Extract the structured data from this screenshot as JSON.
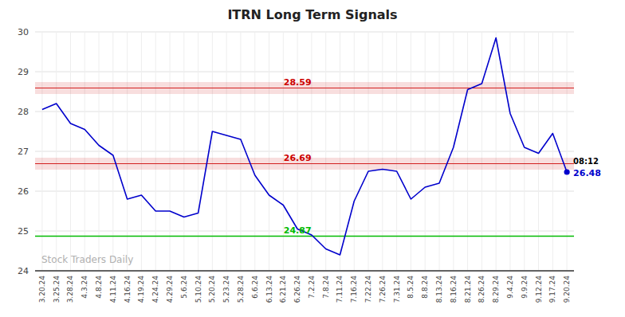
{
  "chart_data": {
    "type": "line",
    "title": "ITRN Long Term Signals",
    "categories": [
      "3.20.24",
      "3.25.24",
      "3.28.24",
      "4.3.24",
      "4.8.24",
      "4.11.24",
      "4.16.24",
      "4.19.24",
      "4.24.24",
      "4.29.24",
      "5.6.24",
      "5.10.24",
      "5.20.24",
      "5.23.24",
      "5.28.24",
      "6.6.24",
      "6.13.24",
      "6.21.24",
      "6.26.24",
      "7.2.24",
      "7.8.24",
      "7.11.24",
      "7.16.24",
      "7.22.24",
      "7.26.24",
      "7.31.24",
      "8.5.24",
      "8.8.24",
      "8.13.24",
      "8.16.24",
      "8.21.24",
      "8.26.24",
      "8.29.24",
      "9.4.24",
      "9.9.24",
      "9.12.24",
      "9.17.24",
      "9.20.24"
    ],
    "values": [
      28.05,
      28.2,
      27.7,
      27.55,
      27.15,
      26.9,
      25.8,
      25.9,
      25.5,
      25.5,
      25.35,
      25.45,
      27.5,
      27.4,
      27.3,
      26.4,
      25.9,
      25.65,
      25.05,
      24.9,
      24.55,
      24.4,
      25.75,
      26.5,
      26.55,
      26.5,
      25.8,
      26.1,
      26.2,
      27.1,
      28.55,
      28.7,
      29.85,
      27.95,
      27.1,
      26.95,
      27.45,
      26.48
    ],
    "color": "#0000cc",
    "ylim": [
      24.0,
      30.0
    ],
    "yticks": [
      24,
      25,
      26,
      27,
      28,
      29,
      30
    ],
    "grid": true,
    "reference_lines": [
      {
        "value": 28.59,
        "label": "28.59",
        "color": "#cc0000",
        "band": [
          28.44,
          28.74
        ]
      },
      {
        "value": 26.69,
        "label": "26.69",
        "color": "#cc0000",
        "band": [
          26.54,
          26.84
        ]
      },
      {
        "value": 24.87,
        "label": "24.87",
        "color": "#00bb00"
      }
    ],
    "annotations": [
      {
        "text": "08:12"
      },
      {
        "text": "26.48",
        "value": 26.48,
        "color": "#0000cc"
      }
    ],
    "watermark": "Stock Traders Daily"
  }
}
